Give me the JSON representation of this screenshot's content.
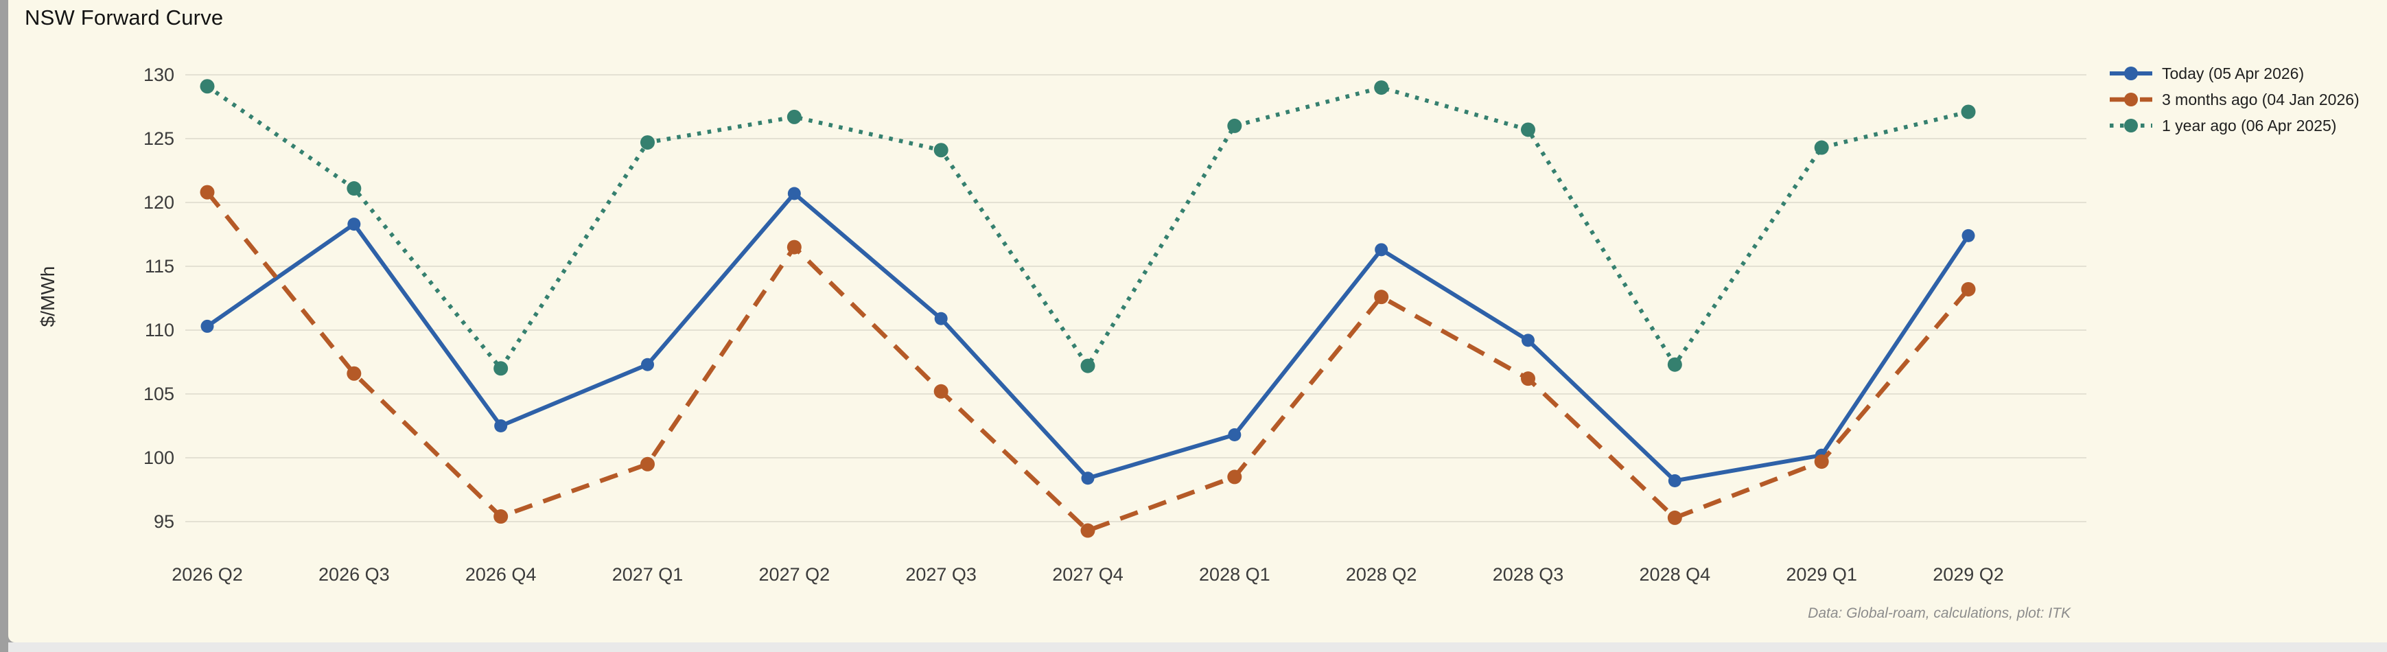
{
  "page": {
    "title": "NSW Forward Curve",
    "footnote": "Data: Global-roam, calculations, plot: ITK"
  },
  "chart_data": {
    "type": "line",
    "title": "NSW Forward Curve",
    "xlabel": "",
    "ylabel": "$/MWh",
    "ylim": [
      92.5,
      131.5
    ],
    "yticks": [
      95,
      100,
      105,
      110,
      115,
      120,
      125,
      130
    ],
    "grid": true,
    "legend_position": "top-right",
    "categories": [
      "2026 Q2",
      "2026 Q3",
      "2026 Q4",
      "2027 Q1",
      "2027 Q2",
      "2027 Q3",
      "2027 Q4",
      "2028 Q1",
      "2028 Q2",
      "2028 Q3",
      "2028 Q4",
      "2029 Q1",
      "2029 Q2"
    ],
    "series": [
      {
        "name": "Today (05 Apr 2026)",
        "color": "#2e61a8",
        "line_style": "solid",
        "marker": "circle",
        "values": [
          110.3,
          118.3,
          102.5,
          107.3,
          120.7,
          110.9,
          98.4,
          101.8,
          116.3,
          109.2,
          98.2,
          100.2,
          117.4
        ]
      },
      {
        "name": "3 months ago (04 Jan 2026)",
        "color": "#b55a27",
        "line_style": "dashed",
        "marker": "circle",
        "values": [
          120.8,
          106.6,
          95.4,
          99.5,
          116.5,
          105.2,
          94.3,
          98.5,
          112.6,
          106.2,
          95.3,
          99.7,
          113.2
        ]
      },
      {
        "name": "1 year ago (06 Apr 2025)",
        "color": "#35806f",
        "line_style": "dotted",
        "marker": "circle",
        "values": [
          129.1,
          121.1,
          107.0,
          124.7,
          126.7,
          124.1,
          107.2,
          126.0,
          129.0,
          125.7,
          107.3,
          124.3,
          127.1
        ]
      }
    ]
  },
  "colors": {
    "card_background": "#fbf8e9",
    "gridline": "#e4e1d3",
    "tick_text": "#3b3b3b",
    "title_text": "#131313",
    "footnote_text": "#8c8c8c",
    "page_edge": "#9f9f9f",
    "bottom_strip": "#e9e9e9"
  }
}
